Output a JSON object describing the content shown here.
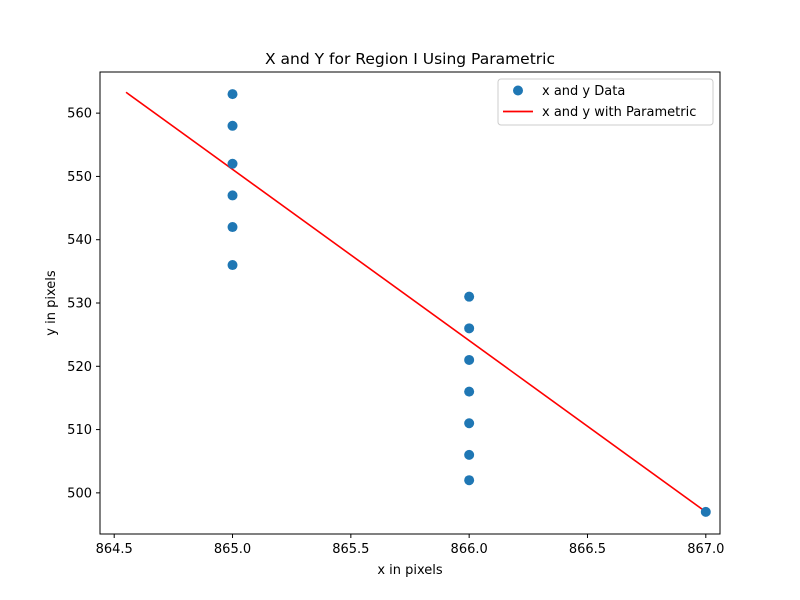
{
  "chart_data": {
    "type": "scatter",
    "title": "X and Y for Region I Using Parametric",
    "xlabel": "x in pixels",
    "ylabel": "y in pixels",
    "xlim": [
      864.44,
      867.06
    ],
    "ylim": [
      493.5,
      566.5
    ],
    "xticks": [
      864.5,
      865.0,
      865.5,
      866.0,
      866.5,
      867.0
    ],
    "xtick_labels": [
      "864.5",
      "865.0",
      "865.5",
      "866.0",
      "866.5",
      "867.0"
    ],
    "yticks": [
      500,
      510,
      520,
      530,
      540,
      550,
      560
    ],
    "ytick_labels": [
      "500",
      "510",
      "520",
      "530",
      "540",
      "550",
      "560"
    ],
    "grid": false,
    "legend_position": "top-right",
    "series": [
      {
        "name": "x and y Data",
        "kind": "scatter",
        "color": "#1f77b4",
        "points": [
          [
            865,
            563
          ],
          [
            865,
            558
          ],
          [
            865,
            552
          ],
          [
            865,
            547
          ],
          [
            865,
            542
          ],
          [
            865,
            536
          ],
          [
            866,
            531
          ],
          [
            866,
            526
          ],
          [
            866,
            521
          ],
          [
            866,
            516
          ],
          [
            866,
            511
          ],
          [
            866,
            506
          ],
          [
            866,
            502
          ],
          [
            867,
            497
          ]
        ]
      },
      {
        "name": "x and y with Parametric",
        "kind": "line",
        "color": "#ff0000",
        "points": [
          [
            864.55,
            563.3
          ],
          [
            867.0,
            497.0
          ]
        ]
      }
    ]
  }
}
